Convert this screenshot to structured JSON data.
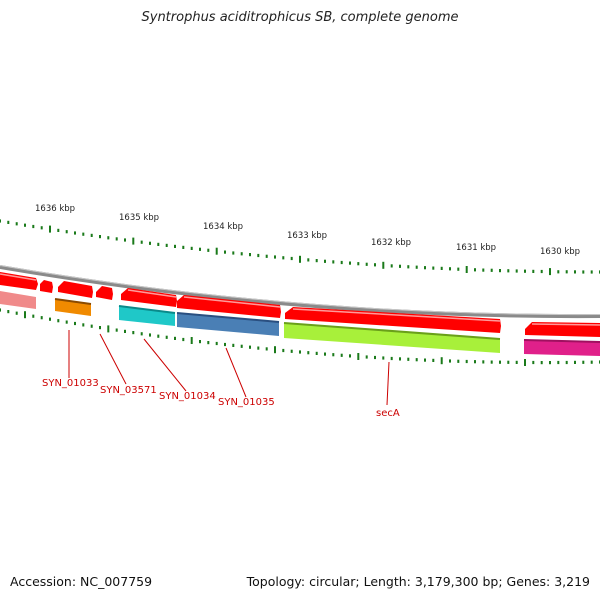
{
  "title": "Syntrophus aciditrophicus SB, complete genome",
  "footer": {
    "accession": "Accession: NC_007759",
    "topology": "Topology: circular; Length: 3,179,300 bp; Genes: 3,219"
  },
  "kbp_labels": [
    "1636 kbp",
    "1635 kbp",
    "1634 kbp",
    "1633 kbp",
    "1632 kbp",
    "1631 kbp",
    "1630 kbp"
  ],
  "gene_labels": [
    "SYN_01033",
    "SYN_03571",
    "SYN_01034",
    "SYN_01035",
    "secA"
  ],
  "colors": {
    "backbone": "#888888",
    "forward_gene": "#ff0000",
    "tick": "#1a7a1a",
    "label": "#cc0000",
    "SYN_01033": "#f08a00",
    "SYN_01034": "#1fc8c8",
    "SYN_01035": "#4a7fb5",
    "secA": "#a8f03a",
    "left_fragment": "#f08a8a",
    "right_fragment": "#e0208a"
  }
}
